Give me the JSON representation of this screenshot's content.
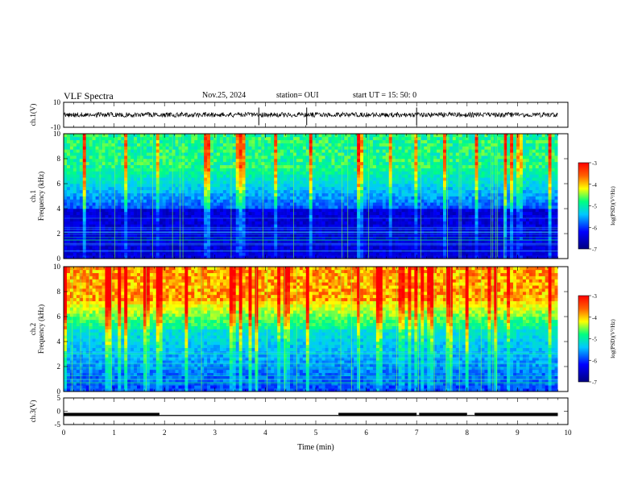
{
  "header": {
    "title": "VLF Spectra",
    "date": "Nov.25, 2024",
    "station": "station= OUI",
    "start": "start  UT =  15: 50: 0"
  },
  "chart_data": {
    "type": "heatmap",
    "x": {
      "label": "Time  (min)",
      "ticks": [
        0,
        1,
        2,
        3,
        4,
        5,
        6,
        7,
        8,
        9,
        10
      ],
      "range": [
        0,
        10
      ]
    },
    "panels": [
      {
        "id": "ch1-waveform",
        "type": "line",
        "ylabel": "ch.1(V)",
        "yticks": [
          "10",
          "-10"
        ],
        "ylim": [
          -10,
          10
        ]
      },
      {
        "id": "ch1-spectrogram",
        "type": "heatmap",
        "ylabel": "ch.1\nFrequency  (kHz)",
        "yticks": [
          0,
          2,
          4,
          6,
          8,
          10
        ],
        "ylim": [
          0,
          10
        ],
        "colorbar": {
          "label": "log(PSD)(V²/Hz)",
          "ticks": [
            "-3",
            "-4",
            "-5",
            "-6",
            "-7"
          ],
          "range": [
            -7,
            -3
          ]
        }
      },
      {
        "id": "ch2-spectrogram",
        "type": "heatmap",
        "ylabel": "ch.2\nFrequency  (kHz)",
        "yticks": [
          0,
          2,
          4,
          6,
          8,
          10
        ],
        "ylim": [
          0,
          10
        ],
        "colorbar": {
          "label": "log(PSD)(V²/Hz)",
          "ticks": [
            "-3",
            "-4",
            "-5",
            "-6",
            "-7"
          ],
          "range": [
            -7,
            -3
          ]
        }
      },
      {
        "id": "ch3-waveform",
        "type": "line",
        "ylabel": "ch.3(V)",
        "yticks": [
          "5",
          "0",
          "-5"
        ],
        "ylim": [
          -5,
          5
        ],
        "segments_min": [
          [
            0,
            1.9,
            -1.2
          ],
          [
            1.9,
            5.45,
            -1.6
          ],
          [
            5.45,
            7.0,
            -1.2
          ],
          [
            7.0,
            7.05,
            -1.6
          ],
          [
            7.05,
            8.0,
            -1.2
          ],
          [
            8.0,
            8.15,
            -1.6
          ],
          [
            8.15,
            9.8,
            -1.2
          ]
        ]
      }
    ],
    "data_end_min": 9.8
  },
  "colors": {
    "spectrogram_low": "#00008b",
    "spectrogram_high": "#ff0000"
  }
}
